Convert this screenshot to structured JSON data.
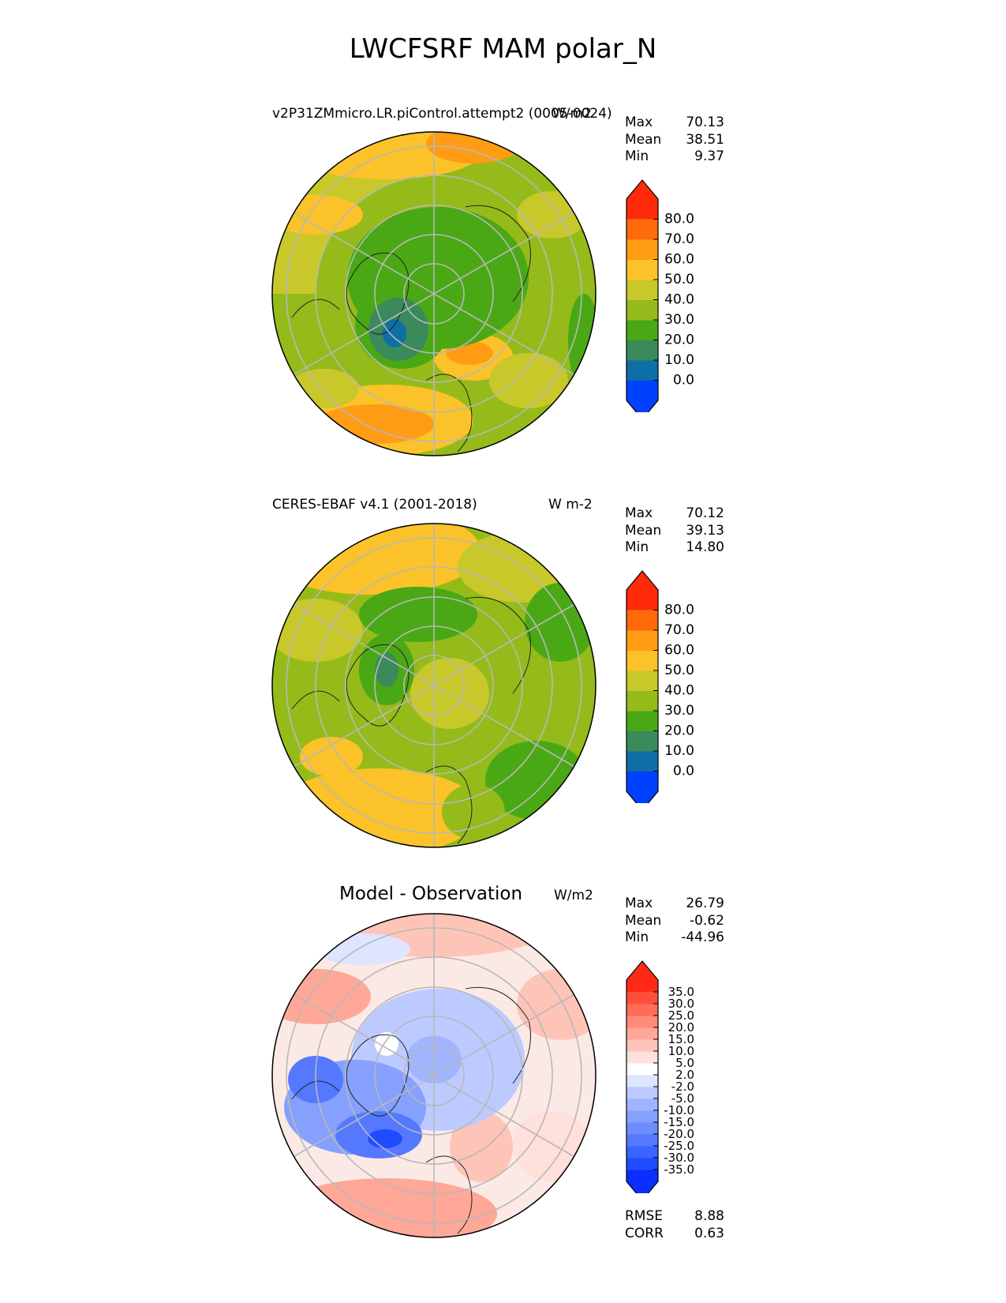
{
  "page_title": "LWCFSRF MAM polar_N",
  "panels": [
    {
      "id": "model",
      "left_label": "v2P31ZMmicro.LR.piControl.attempt2 (0005-0024)",
      "units": "W/m2",
      "stats": [
        {
          "label": "Max",
          "value": "70.13"
        },
        {
          "label": "Mean",
          "value": "38.51"
        },
        {
          "label": "Min",
          "value": "9.37"
        }
      ],
      "colorbar_ticks": [
        "80.0",
        "70.0",
        "60.0",
        "50.0",
        "40.0",
        "30.0",
        "20.0",
        "10.0",
        "0.0"
      ],
      "colorbar_colors": [
        "#0040ff",
        "#0e6fa6",
        "#3a8a5c",
        "#4aa815",
        "#95bb1a",
        "#c8c82a",
        "#fbc329",
        "#ff9c14",
        "#ff6a0a",
        "#ff2a0a"
      ]
    },
    {
      "id": "obs",
      "left_label": "CERES-EBAF v4.1 (2001-2018)",
      "units": "W m-2",
      "stats": [
        {
          "label": "Max",
          "value": "70.12"
        },
        {
          "label": "Mean",
          "value": "39.13"
        },
        {
          "label": "Min",
          "value": "14.80"
        }
      ],
      "colorbar_ticks": [
        "80.0",
        "70.0",
        "60.0",
        "50.0",
        "40.0",
        "30.0",
        "20.0",
        "10.0",
        "0.0"
      ],
      "colorbar_colors": [
        "#0040ff",
        "#0e6fa6",
        "#3a8a5c",
        "#4aa815",
        "#95bb1a",
        "#c8c82a",
        "#fbc329",
        "#ff9c14",
        "#ff6a0a",
        "#ff2a0a"
      ]
    },
    {
      "id": "diff",
      "center_label": "Model - Observation",
      "units": "W/m2",
      "stats": [
        {
          "label": "Max",
          "value": "26.79"
        },
        {
          "label": "Mean",
          "value": "-0.62"
        },
        {
          "label": "Min",
          "value": "-44.96"
        }
      ],
      "colorbar_ticks": [
        "35.0",
        "30.0",
        "25.0",
        "20.0",
        "15.0",
        "10.0",
        "5.0",
        "2.0",
        "-2.0",
        "-5.0",
        "-10.0",
        "-15.0",
        "-20.0",
        "-25.0",
        "-30.0",
        "-35.0"
      ],
      "colorbar_colors": [
        "#0a2fff",
        "#1f4cff",
        "#3a63ff",
        "#5479ff",
        "#6d8dff",
        "#86a0ff",
        "#a0b4ff",
        "#bccaff",
        "#dde5ff",
        "#ffffff",
        "#ffe0da",
        "#ffc4b8",
        "#ffa898",
        "#ff8a78",
        "#ff6c58",
        "#ff4e3a",
        "#ff2a16"
      ],
      "extra_stats": [
        {
          "label": "RMSE",
          "value": "8.88"
        },
        {
          "label": "CORR",
          "value": "0.63"
        }
      ]
    }
  ]
}
